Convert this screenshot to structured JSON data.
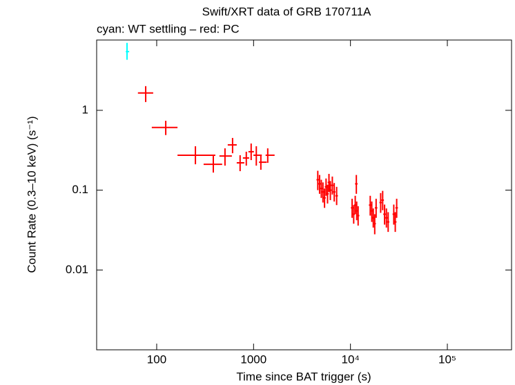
{
  "chart_data": {
    "type": "scatter",
    "title": "Swift/XRT data of GRB 170711A",
    "subtitle": "cyan: WT settling – red: PC",
    "x_label": "Time since BAT trigger (s)",
    "y_label": "Count Rate (0.3–10 keV) (s⁻¹)",
    "log_x": true,
    "log_y": true,
    "grid": false,
    "xlim": [
      24,
      460000
    ],
    "ylim": [
      0.001,
      7.6
    ],
    "xticks": [
      100,
      1000,
      {
        "value": 10000,
        "label": "10⁴"
      },
      {
        "value": 100000,
        "label": "10⁵"
      }
    ],
    "yticks": [
      0.01,
      0.1,
      1
    ],
    "series": [
      {
        "color": "#00ffff",
        "x": [
          49.4
        ],
        "values": [
          5.44
        ],
        "x_min": [
          48
        ],
        "x_max": [
          52
        ],
        "y_min": [
          4.3
        ],
        "y_max": [
          7.0
        ]
      },
      {
        "color": "#ff0000",
        "x": [
          77,
          124,
          251,
          384,
          507,
          607,
          726,
          841,
          944,
          1067,
          1189,
          1400,
          4600,
          4800,
          5000,
          5200,
          5400,
          5600,
          5800,
          6000,
          6200,
          6500,
          6800,
          7200,
          10400,
          10800,
          11200,
          11500,
          11600,
          12000,
          16000,
          16600,
          17200,
          17800,
          18400,
          20500,
          21500,
          22500,
          23500,
          24500,
          28000,
          29000,
          30000
        ],
        "values": [
          1.65,
          0.61,
          0.274,
          0.211,
          0.268,
          0.369,
          0.22,
          0.253,
          0.303,
          0.274,
          0.224,
          0.274,
          0.135,
          0.12,
          0.105,
          0.095,
          0.08,
          0.11,
          0.09,
          0.125,
          0.1,
          0.115,
          0.095,
          0.085,
          0.06,
          0.05,
          0.065,
          0.12,
          0.055,
          0.048,
          0.065,
          0.055,
          0.045,
          0.038,
          0.06,
          0.07,
          0.075,
          0.05,
          0.045,
          0.04,
          0.05,
          0.04,
          0.06
        ],
        "x_min": [
          64,
          89,
          164,
          305,
          444,
          541,
          670,
          776,
          885,
          997,
          1137,
          1330,
          4460,
          4660,
          4850,
          5050,
          5240,
          5430,
          5630,
          5820,
          6010,
          6300,
          6600,
          6980,
          10100,
          10480,
          10860,
          11150,
          11250,
          11640,
          15500,
          16100,
          16700,
          17300,
          17850,
          19900,
          20850,
          21800,
          22800,
          23800,
          27200,
          28100,
          29100
        ],
        "x_max": [
          92,
          164,
          403,
          474,
          597,
          670,
          802,
          900,
          1008,
          1216,
          1366,
          1648,
          4740,
          4940,
          5150,
          5350,
          5560,
          5770,
          5970,
          6180,
          6390,
          6700,
          7000,
          7420,
          10700,
          11120,
          11540,
          11850,
          11950,
          12360,
          16500,
          17100,
          17700,
          18300,
          18950,
          21100,
          22150,
          23200,
          24200,
          25200,
          28800,
          29900,
          30900
        ],
        "y_min": [
          1.27,
          0.49,
          0.211,
          0.166,
          0.203,
          0.29,
          0.173,
          0.203,
          0.238,
          0.203,
          0.18,
          0.22,
          0.1,
          0.09,
          0.08,
          0.07,
          0.06,
          0.085,
          0.068,
          0.095,
          0.075,
          0.088,
          0.072,
          0.065,
          0.045,
          0.038,
          0.05,
          0.09,
          0.042,
          0.036,
          0.048,
          0.04,
          0.034,
          0.028,
          0.045,
          0.052,
          0.056,
          0.037,
          0.034,
          0.03,
          0.037,
          0.03,
          0.045
        ],
        "y_max": [
          2.01,
          0.74,
          0.355,
          0.268,
          0.334,
          0.451,
          0.274,
          0.303,
          0.384,
          0.355,
          0.279,
          0.334,
          0.175,
          0.155,
          0.135,
          0.125,
          0.105,
          0.14,
          0.117,
          0.16,
          0.13,
          0.148,
          0.123,
          0.11,
          0.078,
          0.065,
          0.085,
          0.155,
          0.072,
          0.063,
          0.085,
          0.072,
          0.059,
          0.05,
          0.078,
          0.092,
          0.098,
          0.066,
          0.059,
          0.053,
          0.066,
          0.053,
          0.078
        ]
      }
    ]
  }
}
